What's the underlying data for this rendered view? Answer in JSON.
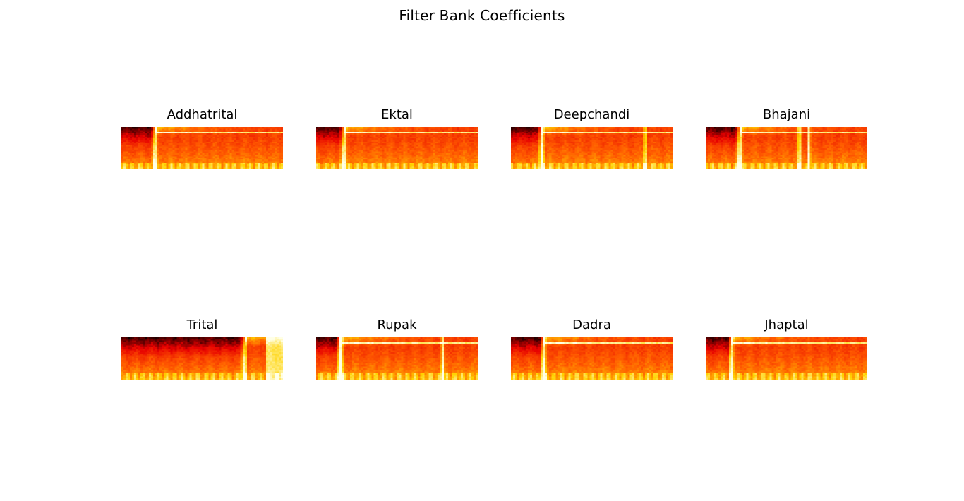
{
  "figure": {
    "title": "Filter Bank Coefficients"
  },
  "chart_data": {
    "type": "heatmap",
    "colormap": "hot",
    "colormap_stops": [
      "#000000",
      "#e60000",
      "#ff5a00",
      "#ffd200",
      "#ffffe6"
    ],
    "axes_visible": false,
    "panels": [
      {
        "title": "Addhatrital",
        "onsets": [
          0.21
        ],
        "bright_bands": [
          0.13
        ],
        "tail_onset": null
      },
      {
        "title": "Ektal",
        "onsets": [
          0.17
        ],
        "bright_bands": [
          0.12
        ],
        "tail_onset": null
      },
      {
        "title": "Deepchandi",
        "onsets": [
          0.19,
          0.83
        ],
        "bright_bands": [
          0.12
        ],
        "tail_onset": null
      },
      {
        "title": "Bhajani",
        "onsets": [
          0.21,
          0.58,
          0.64
        ],
        "bright_bands": [
          0.12
        ],
        "tail_onset": null
      },
      {
        "title": "Trital",
        "onsets": [
          0.76
        ],
        "bright_bands": [],
        "tail_onset": 0.89
      },
      {
        "title": "Rupak",
        "onsets": [
          0.15,
          0.78
        ],
        "bright_bands": [
          0.12
        ],
        "tail_onset": null
      },
      {
        "title": "Dadra",
        "onsets": [
          0.2
        ],
        "bright_bands": [
          0.12
        ],
        "tail_onset": null
      },
      {
        "title": "Jhaptal",
        "onsets": [
          0.16
        ],
        "bright_bands": [
          0.11
        ],
        "tail_onset": null
      }
    ]
  }
}
